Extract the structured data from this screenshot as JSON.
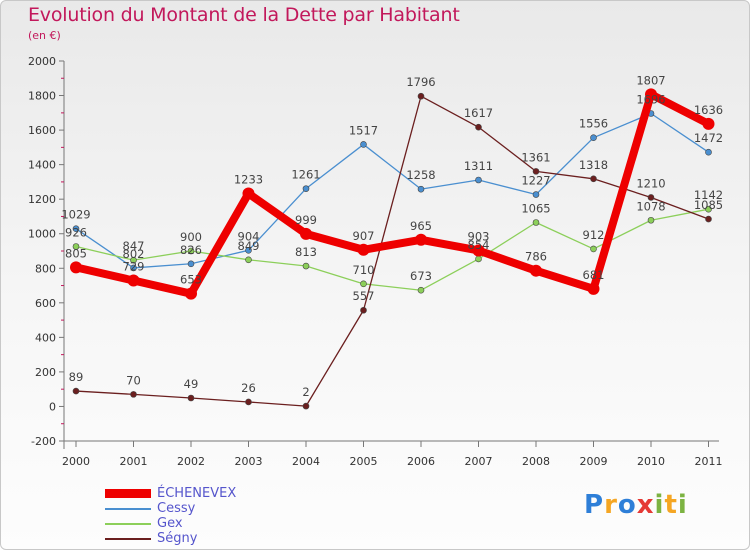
{
  "header": {
    "title": "Evolution du Montant de la Dette par Habitant",
    "unit": "(en €)"
  },
  "brand": {
    "text": "Proxiti",
    "letters": [
      {
        "ch": "P",
        "color": "#2e7fd8"
      },
      {
        "ch": "r",
        "color": "#f5a623"
      },
      {
        "ch": "o",
        "color": "#2e7fd8"
      },
      {
        "ch": "x",
        "color": "#e53935"
      },
      {
        "ch": "i",
        "color": "#7cb342"
      },
      {
        "ch": "t",
        "color": "#f5a623"
      },
      {
        "ch": "i",
        "color": "#7cb342"
      }
    ]
  },
  "chart_data": {
    "type": "line",
    "title": "Evolution du Montant de la Dette par Habitant",
    "subtitle": "(en €)",
    "x": [
      "2000",
      "2001",
      "2002",
      "2003",
      "2004",
      "2005",
      "2006",
      "2007",
      "2008",
      "2009",
      "2010",
      "2011"
    ],
    "ylim": [
      -200,
      2000
    ],
    "yticks": [
      -200,
      0,
      200,
      400,
      600,
      800,
      1000,
      1200,
      1400,
      1600,
      1800,
      2000
    ],
    "grid": false,
    "legend_position": "bottom-left",
    "series": [
      {
        "name": "ÉCHENEVEX",
        "color": "#ee0000",
        "values": [
          805,
          729,
          653,
          1233,
          999,
          907,
          965,
          903,
          786,
          681,
          1807,
          1636
        ]
      },
      {
        "name": "Cessy",
        "color": "#4a8fd0",
        "values": [
          1029,
          802,
          826,
          904,
          1261,
          1517,
          1258,
          1311,
          1227,
          1556,
          1696,
          1472
        ]
      },
      {
        "name": "Gex",
        "color": "#8ccf5a",
        "values": [
          926,
          847,
          900,
          849,
          813,
          710,
          673,
          854,
          1065,
          912,
          1078,
          1142
        ]
      },
      {
        "name": "Ségny",
        "color": "#6b1f1f",
        "values": [
          89,
          70,
          49,
          26,
          2,
          557,
          1796,
          1617,
          1361,
          1318,
          1210,
          1085
        ]
      }
    ]
  }
}
